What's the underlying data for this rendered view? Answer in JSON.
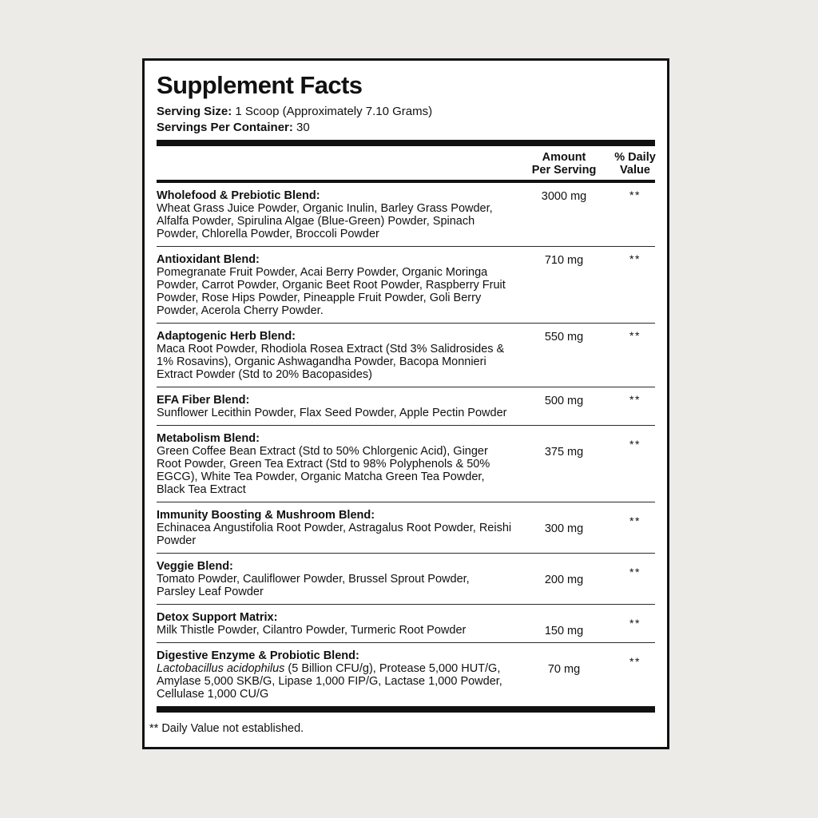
{
  "page": {
    "background_color": "#ecebe8",
    "panel_color": "#ffffff",
    "text_color": "#111111",
    "rule_color": "#2a2a2a"
  },
  "label": {
    "title": "Supplement Facts",
    "serving_size_label": "Serving Size:",
    "serving_size_value": " 1 Scoop (Approximately 7.10 Grams)",
    "servings_per_container_label": "Servings Per Container:",
    "servings_per_container_value": " 30",
    "columns": {
      "amount": "Amount\nPer Serving",
      "daily_value": "% Daily\nValue"
    },
    "footnote": "** Daily Value not established."
  },
  "sections": [
    {
      "name": "Wholefood & Prebiotic Blend:",
      "ingredients": "Wheat Grass Juice Powder, Organic Inulin, Barley Grass Powder,\nAlfalfa Powder, Spirulina Algae (Blue-Green) Powder, Spinach\nPowder, Chlorella Powder, Broccoli Powder",
      "amount": "3000 mg",
      "dv": "**"
    },
    {
      "name": "Antioxidant Blend:",
      "ingredients": "Pomegranate Fruit Powder, Acai Berry Powder, Organic Moringa\nPowder, Carrot Powder, Organic Beet Root Powder, Raspberry Fruit\nPowder, Rose Hips Powder, Pineapple Fruit Powder, Goli Berry\nPowder, Acerola Cherry Powder.",
      "amount": "710 mg",
      "dv": "**"
    },
    {
      "name": "Adaptogenic Herb Blend:",
      "ingredients": "Maca Root Powder, Rhodiola Rosea Extract (Std 3% Salidrosides &\n1% Rosavins), Organic Ashwagandha Powder, Bacopa Monnieri\nExtract Powder (Std to 20% Bacopasides)",
      "amount": "550 mg",
      "dv": "**"
    },
    {
      "name": "EFA Fiber Blend:",
      "ingredients": "Sunflower Lecithin Powder, Flax Seed Powder, Apple Pectin Powder",
      "amount": "500 mg",
      "dv": "**"
    },
    {
      "name": "Metabolism Blend:",
      "ingredients": "Green Coffee Bean Extract (Std to 50% Chlorgenic Acid), Ginger\nRoot Powder, Green Tea Extract (Std to 98% Polyphenols & 50%\nEGCG), White Tea Powder, Organic Matcha Green Tea Powder,\nBlack Tea Extract",
      "amount": "375 mg",
      "dv": "**"
    },
    {
      "name": "Immunity Boosting & Mushroom Blend:",
      "ingredients": "Echinacea Angustifolia Root Powder, Astragalus Root Powder, Reishi\nPowder",
      "amount": "300 mg",
      "dv": "**"
    },
    {
      "name": "Veggie Blend:",
      "ingredients": "Tomato Powder, Cauliflower Powder, Brussel Sprout Powder,\nParsley Leaf Powder",
      "amount": "200 mg",
      "dv": "**"
    },
    {
      "name": "Detox Support Matrix:",
      "ingredients": "Milk Thistle Powder, Cilantro Powder, Turmeric Root Powder",
      "amount": "150 mg",
      "dv": "**"
    },
    {
      "name": "Digestive Enzyme & Probiotic Blend:",
      "ingredients_italic": "Lactobacillus acidophilus",
      "ingredients_rest": " (5 Billion CFU/g), Protease 5,000 HUT/G,\nAmylase 5,000 SKB/G, Lipase 1,000 FIP/G, Lactase 1,000 Powder,\nCellulase 1,000 CU/G",
      "amount": "70 mg",
      "dv": "**"
    }
  ]
}
